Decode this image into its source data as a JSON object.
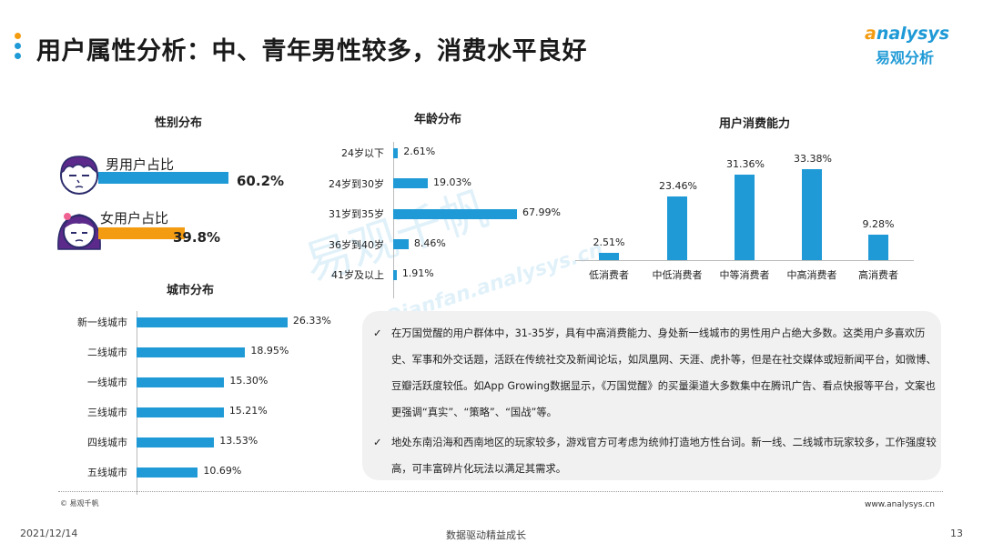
{
  "header": {
    "title": "用户属性分析：中、青年男性较多，消费水平良好",
    "dot_colors": [
      "#f39c12",
      "#1f9ad6",
      "#1f9ad6"
    ]
  },
  "logo": {
    "brand_a": "a",
    "brand_rest": "nalysys",
    "sub": "易观分析"
  },
  "watermark": {
    "main": "易观千帆",
    "url": "Qianfan.analysys.cn"
  },
  "gender": {
    "title": "性别分布",
    "rows": [
      {
        "label": "男用户占比",
        "value": 60.2,
        "display": "60.2%",
        "color": "#1f9ad6",
        "icon": "male-avatar-icon"
      },
      {
        "label": "女用户占比",
        "value": 39.8,
        "display": "39.8%",
        "color": "#f39c12",
        "icon": "female-avatar-icon"
      }
    ]
  },
  "chart_data": [
    {
      "type": "bar",
      "orientation": "horizontal",
      "title": "年龄分布",
      "categories": [
        "24岁以下",
        "24岁到30岁",
        "31岁到35岁",
        "36岁到40岁",
        "41岁及以上"
      ],
      "values": [
        2.61,
        19.03,
        67.99,
        8.46,
        1.91
      ],
      "labels": [
        "2.61%",
        "19.03%",
        "67.99%",
        "8.46%",
        "1.91%"
      ],
      "color": "#1f9ad6"
    },
    {
      "type": "bar",
      "orientation": "vertical",
      "title": "用户消费能力",
      "categories": [
        "低消费者",
        "中低消费者",
        "中等消费者",
        "中高消费者",
        "高消费者"
      ],
      "values": [
        2.51,
        23.46,
        31.36,
        33.38,
        9.28
      ],
      "labels": [
        "2.51%",
        "23.46%",
        "31.36%",
        "33.38%",
        "9.28%"
      ],
      "color": "#1f9ad6"
    },
    {
      "type": "bar",
      "orientation": "horizontal",
      "title": "城市分布",
      "categories": [
        "新一线城市",
        "二线城市",
        "一线城市",
        "三线城市",
        "四线城市",
        "五线城市"
      ],
      "values": [
        26.33,
        18.95,
        15.3,
        15.21,
        13.53,
        10.69
      ],
      "labels": [
        "26.33%",
        "18.95%",
        "15.30%",
        "15.21%",
        "13.53%",
        "10.69%"
      ],
      "color": "#1f9ad6"
    }
  ],
  "notes": {
    "check": "✓",
    "items": [
      "在万国觉醒的用户群体中，31-35岁，具有中高消费能力、身处新一线城市的男性用户占绝大多数。这类用户多喜欢历史、军事和外交话题，活跃在传统社交及新闻论坛，如凤凰网、天涯、虎扑等，但是在社交媒体或短新闻平台，如微博、豆瓣活跃度较低。如App Growing数据显示，《万国觉醒》的买量渠道大多数集中在腾讯广告、看点快报等平台，文案也更强调“真实”、“策略”、“国战”等。",
      "地处东南沿海和西南地区的玩家较多，游戏官方可考虑为统帅打造地方性台词。新一线、二线城市玩家较多，工作强度较高，可丰富碎片化玩法以满足其需求。"
    ]
  },
  "footer": {
    "copyright": "© 易观千帆",
    "site": "www.analysys.cn",
    "date": "2021/12/14",
    "slogan": "数据驱动精益成长",
    "page": "13"
  }
}
